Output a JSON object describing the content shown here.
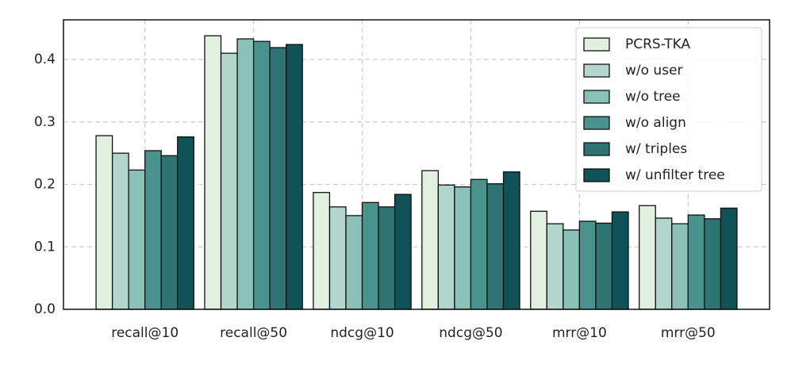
{
  "chart_data": {
    "type": "bar",
    "categories": [
      "recall@10",
      "recall@50",
      "ndcg@10",
      "ndcg@50",
      "mrr@10",
      "mrr@50"
    ],
    "series": [
      {
        "name": "PCRS-TKA",
        "color": "#e2f0df",
        "values": [
          0.278,
          0.438,
          0.187,
          0.222,
          0.157,
          0.166
        ]
      },
      {
        "name": "w/o user",
        "color": "#b3d6cc",
        "values": [
          0.25,
          0.41,
          0.164,
          0.199,
          0.137,
          0.146
        ]
      },
      {
        "name": "w/o tree",
        "color": "#8ac2b8",
        "values": [
          0.223,
          0.433,
          0.15,
          0.196,
          0.127,
          0.137
        ]
      },
      {
        "name": "w/o align",
        "color": "#4a928d",
        "values": [
          0.254,
          0.429,
          0.171,
          0.208,
          0.141,
          0.151
        ]
      },
      {
        "name": "w/ triples",
        "color": "#2d7473",
        "values": [
          0.246,
          0.419,
          0.164,
          0.201,
          0.138,
          0.145
        ]
      },
      {
        "name": "w/ unfilter tree",
        "color": "#0f5358",
        "values": [
          0.276,
          0.424,
          0.184,
          0.22,
          0.156,
          0.162
        ]
      }
    ],
    "ylim": [
      0,
      0.4635
    ],
    "yticks": [
      {
        "value": 0,
        "label": "0.0"
      },
      0.1,
      0.2,
      0.3,
      0.4
    ],
    "grid": true,
    "legend": "upper-right"
  }
}
